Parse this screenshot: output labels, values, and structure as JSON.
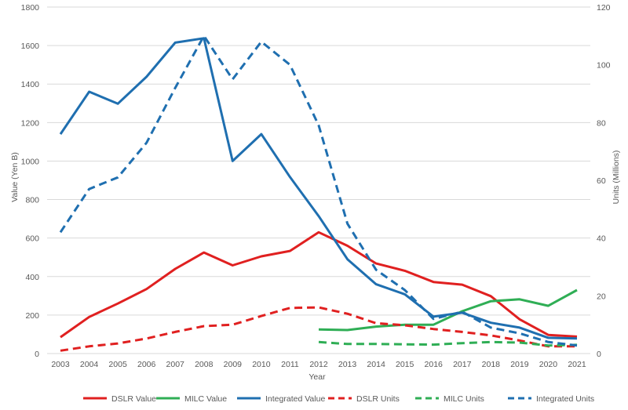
{
  "chart_data": {
    "type": "line",
    "xlabel": "Year",
    "ylabel_left": "Value (Yen B)",
    "ylabel_right": "Units (Millions)",
    "ylim_left": [
      0,
      1800
    ],
    "ylim_right": [
      0,
      120
    ],
    "yticks_left": [
      0,
      200,
      400,
      600,
      800,
      1000,
      1200,
      1400,
      1600,
      1800
    ],
    "yticks_right": [
      0,
      20,
      40,
      60,
      80,
      100,
      120
    ],
    "grid": "horizontal",
    "legend_position": "bottom",
    "x": [
      "2003",
      "2004",
      "2005",
      "2006",
      "2007",
      "2008",
      "2009",
      "2010",
      "2011",
      "2012",
      "2013",
      "2014",
      "2015",
      "2016",
      "2017",
      "2018",
      "2019",
      "2020",
      "2021"
    ],
    "series": [
      {
        "name": "DSLR Value",
        "axis": "left",
        "dash": false,
        "color": "#e02020",
        "values": [
          85,
          190,
          260,
          335,
          440,
          525,
          458,
          505,
          533,
          630,
          560,
          468,
          430,
          372,
          358,
          298,
          178,
          97,
          88
        ]
      },
      {
        "name": "MILC Value",
        "axis": "left",
        "dash": false,
        "color": "#2fae55",
        "values": [
          null,
          null,
          null,
          null,
          null,
          null,
          null,
          null,
          null,
          125,
          122,
          140,
          150,
          150,
          220,
          272,
          282,
          248,
          330
        ]
      },
      {
        "name": "Integrated Value",
        "axis": "left",
        "dash": false,
        "color": "#1f6fb0",
        "values": [
          1140,
          1360,
          1298,
          1438,
          1615,
          1638,
          1000,
          1140,
          917,
          714,
          490,
          360,
          308,
          192,
          212,
          160,
          135,
          82,
          78
        ]
      },
      {
        "name": "DSLR Units",
        "axis": "right",
        "dash": true,
        "color": "#e02020",
        "values": [
          1,
          2.5,
          3.5,
          5.2,
          7.5,
          9.5,
          10,
          13,
          15.8,
          16,
          13.8,
          10.5,
          9.8,
          8.5,
          7.5,
          6.3,
          4.5,
          2.5,
          2.5
        ]
      },
      {
        "name": "MILC Units",
        "axis": "right",
        "dash": true,
        "color": "#2fae55",
        "values": [
          null,
          null,
          null,
          null,
          null,
          null,
          null,
          null,
          null,
          4,
          3.3,
          3.3,
          3.2,
          3.1,
          3.6,
          4,
          3.8,
          2.8,
          3
        ]
      },
      {
        "name": "Integrated Units",
        "axis": "right",
        "dash": true,
        "color": "#1f6fb0",
        "values": [
          42,
          57,
          61,
          73,
          92,
          110,
          95,
          108,
          100,
          79,
          45,
          29,
          22,
          12,
          14.5,
          9,
          7,
          4,
          2.8
        ]
      }
    ]
  }
}
